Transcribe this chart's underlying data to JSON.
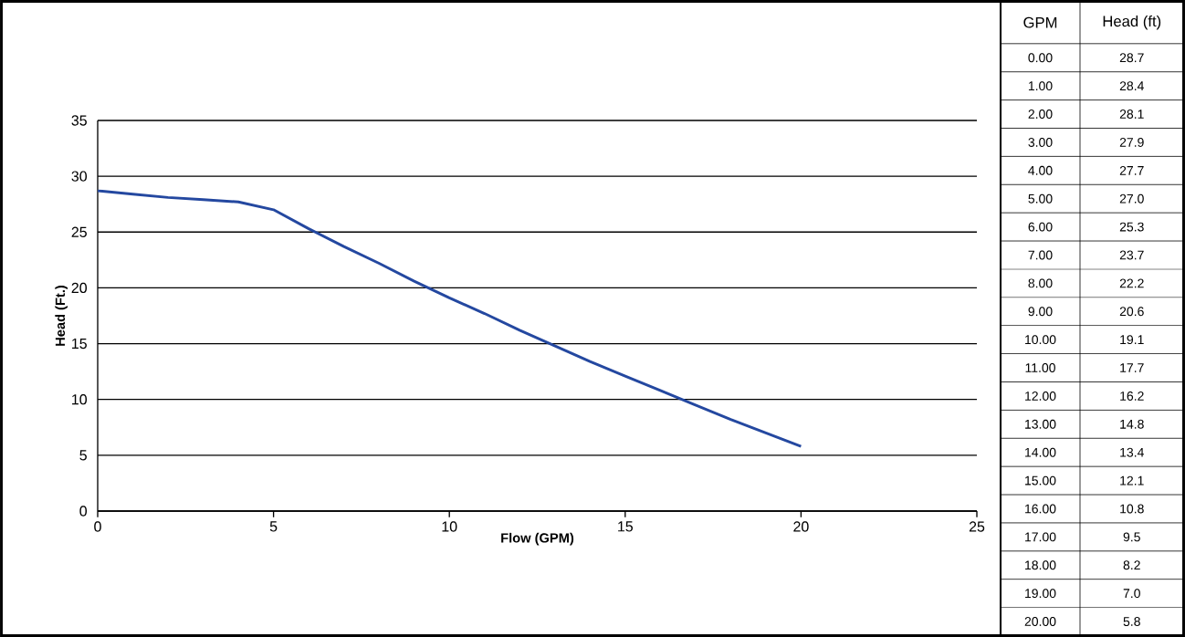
{
  "chart_data": {
    "type": "line",
    "xlabel": "Flow (GPM)",
    "ylabel": "Head (Ft.)",
    "x": [
      0,
      1,
      2,
      3,
      4,
      5,
      6,
      7,
      8,
      9,
      10,
      11,
      12,
      13,
      14,
      15,
      16,
      17,
      18,
      19,
      20
    ],
    "series": [
      {
        "color": "#2448a0",
        "values": [
          28.7,
          28.4,
          28.1,
          27.9,
          27.7,
          27.0,
          25.3,
          23.7,
          22.2,
          20.6,
          19.1,
          17.7,
          16.2,
          14.8,
          13.4,
          12.1,
          10.8,
          9.5,
          8.2,
          7.0,
          5.8
        ]
      }
    ],
    "xlim": [
      0,
      25
    ],
    "ylim": [
      0,
      35
    ],
    "xticks": [
      0,
      5,
      10,
      15,
      20,
      25
    ],
    "yticks": [
      0,
      5,
      10,
      15,
      20,
      25,
      30,
      35
    ],
    "grid": "y",
    "marker": "none",
    "line_style": "solid",
    "annotations": [
      "GPM",
      "Head (ft)",
      "0.00",
      "28.7",
      "1.00",
      "28.4",
      "2.00",
      "28.1",
      "3.00",
      "27.9",
      "4.00",
      "27.7",
      "5.00",
      "27.0",
      "6.00",
      "25.3",
      "7.00",
      "23.7",
      "8.00",
      "22.2",
      "9.00",
      "20.6",
      "10.00",
      "19.1",
      "11.00",
      "17.7",
      "12.00",
      "16.2",
      "13.00",
      "14.8",
      "14.00",
      "13.4",
      "15.00",
      "12.1",
      "16.00",
      "10.8",
      "17.00",
      "9.5",
      "18.00",
      "8.2",
      "19.00",
      "7.0",
      "20.00",
      "5.8"
    ]
  }
}
